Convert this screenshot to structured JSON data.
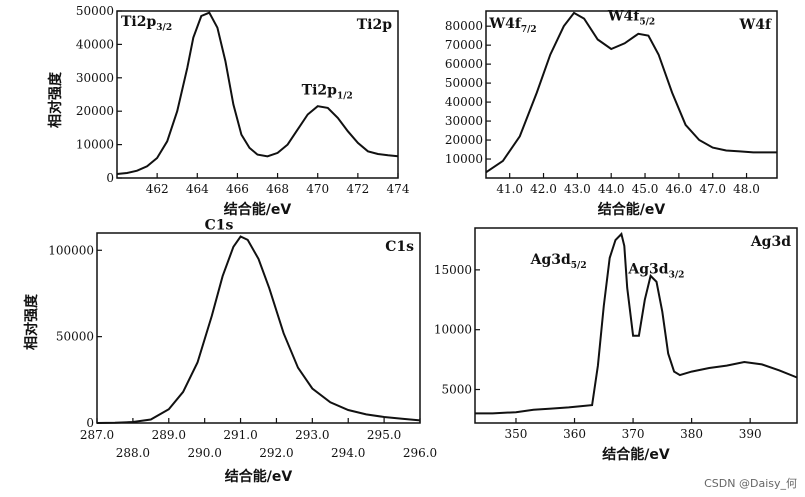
{
  "ylabel_text": "相对强度",
  "watermark": "CSDN @Daisy_何",
  "chart_data": [
    {
      "type": "line",
      "title": "Ti2p",
      "xlabel": "结合能/eV",
      "ylabel": "相对强度",
      "xlim": [
        460.0,
        474.0
      ],
      "ylim": [
        0,
        50000
      ],
      "xticks": [
        462,
        464,
        466,
        468,
        470,
        472,
        474
      ],
      "xtick_labels": [
        "462",
        "464",
        "466",
        "468",
        "470",
        "472",
        "474"
      ],
      "yticks": [
        0,
        10000,
        20000,
        30000,
        40000,
        50000
      ],
      "ytick_labels": [
        "0",
        "10000",
        "20000",
        "30000",
        "40000",
        "50000"
      ],
      "annotations": [
        {
          "main": "Ti2p",
          "sub": "3/2",
          "x": 460.2,
          "y": 45500
        },
        {
          "main": "Ti2p",
          "sub": "1/2",
          "x": 469.2,
          "y": 25000
        }
      ],
      "series": [
        {
          "x": [
            460.0,
            460.5,
            461.0,
            461.5,
            462.0,
            462.5,
            463.0,
            463.5,
            463.8,
            464.2,
            464.6,
            465.0,
            465.4,
            465.8,
            466.2,
            466.6,
            467.0,
            467.5,
            468.0,
            468.5,
            469.0,
            469.5,
            470.0,
            470.5,
            471.0,
            471.5,
            472.0,
            472.5,
            473.0,
            473.5,
            474.0
          ],
          "y": [
            1200,
            1500,
            2200,
            3500,
            6000,
            11000,
            20000,
            33000,
            42000,
            48500,
            49500,
            45000,
            35000,
            22000,
            13000,
            9000,
            7000,
            6500,
            7500,
            10000,
            14500,
            19000,
            21500,
            21000,
            18000,
            14000,
            10500,
            8000,
            7200,
            6800,
            6500
          ]
        }
      ]
    },
    {
      "type": "line",
      "title": "W4f",
      "xlabel": "结合能/eV",
      "ylabel": "",
      "xlim": [
        40.3,
        48.9
      ],
      "ylim": [
        0,
        88000
      ],
      "xticks": [
        41.0,
        42.0,
        43.0,
        44.0,
        45.0,
        46.0,
        47.0,
        48.0
      ],
      "xtick_labels": [
        "41.0",
        "42.0",
        "43.0",
        "44.0",
        "45.0",
        "46.0",
        "47.0",
        "48.0"
      ],
      "yticks": [
        10000,
        20000,
        30000,
        40000,
        50000,
        60000,
        70000,
        80000
      ],
      "ytick_labels": [
        "10000",
        "20000",
        "30000",
        "40000",
        "50000",
        "60000",
        "70000",
        "80000"
      ],
      "annotations": [
        {
          "main": "W4f",
          "sub": "7/2",
          "x": 40.4,
          "y": 79000
        },
        {
          "main": "W4f",
          "sub": "5/2",
          "x": 43.9,
          "y": 83000
        }
      ],
      "series": [
        {
          "x": [
            40.3,
            40.8,
            41.3,
            41.8,
            42.2,
            42.6,
            42.9,
            43.2,
            43.6,
            44.0,
            44.4,
            44.8,
            45.1,
            45.4,
            45.8,
            46.2,
            46.6,
            47.0,
            47.4,
            47.8,
            48.2,
            48.9
          ],
          "y": [
            3000,
            9000,
            22000,
            45000,
            65000,
            80000,
            87000,
            84000,
            73000,
            68000,
            71000,
            76000,
            75000,
            65000,
            45000,
            28000,
            20000,
            16000,
            14500,
            14000,
            13500,
            13500
          ]
        }
      ]
    },
    {
      "type": "line",
      "title": "C1s",
      "xlabel": "结合能/eV",
      "ylabel": "相对强度",
      "xlim": [
        287.0,
        296.0
      ],
      "ylim": [
        0,
        110000
      ],
      "xticks": [
        287.0,
        288.0,
        289.0,
        290.0,
        291.0,
        292.0,
        293.0,
        294.0,
        295.0,
        296.0
      ],
      "xtick_labels": [
        "287.0",
        "288.0",
        "289.0",
        "290.0",
        "291.0",
        "292.0",
        "293.0",
        "294.0",
        "295.0",
        "296.0"
      ],
      "yticks": [
        0,
        50000,
        100000
      ],
      "ytick_labels": [
        "0",
        "50000",
        "100000"
      ],
      "annotations": [
        {
          "main": "C1s",
          "sub": "",
          "x": 290.0,
          "y": 112000
        }
      ],
      "series": [
        {
          "x": [
            287.0,
            287.5,
            288.0,
            288.5,
            289.0,
            289.4,
            289.8,
            290.2,
            290.5,
            290.8,
            291.0,
            291.2,
            291.5,
            291.8,
            292.2,
            292.6,
            293.0,
            293.5,
            294.0,
            294.5,
            295.0,
            295.5,
            296.0
          ],
          "y": [
            0,
            200,
            600,
            2000,
            8000,
            18000,
            35000,
            62000,
            85000,
            102000,
            108000,
            106000,
            95000,
            78000,
            52000,
            32000,
            20000,
            12000,
            7500,
            5000,
            3500,
            2500,
            1500
          ]
        }
      ]
    },
    {
      "type": "line",
      "title": "Ag3d",
      "xlabel": "结合能/eV",
      "ylabel": "",
      "xlim": [
        343,
        398
      ],
      "ylim": [
        2200,
        18500
      ],
      "xticks": [
        350,
        360,
        370,
        380,
        390
      ],
      "xtick_labels": [
        "350",
        "360",
        "370",
        "380",
        "390"
      ],
      "yticks": [
        5000,
        10000,
        15000
      ],
      "ytick_labels": [
        "5000",
        "10000",
        "15000"
      ],
      "annotations": [
        {
          "main": "Ag3d",
          "sub": "5/2",
          "x": 352.5,
          "y": 15500
        },
        {
          "main": "Ag3d",
          "sub": "3/2",
          "x": 369.2,
          "y": 14700
        }
      ],
      "series": [
        {
          "x": [
            343,
            346,
            350,
            353,
            356,
            359,
            361,
            363,
            364,
            365,
            366,
            367,
            368,
            368.5,
            369,
            370,
            371,
            372,
            373,
            374,
            375,
            376,
            377,
            378,
            380,
            383,
            386,
            389,
            392,
            395,
            398
          ],
          "y": [
            3000,
            3000,
            3100,
            3300,
            3400,
            3500,
            3600,
            3700,
            7000,
            12000,
            16000,
            17500,
            18000,
            17000,
            13500,
            9500,
            9500,
            12500,
            14500,
            14000,
            11500,
            8000,
            6500,
            6200,
            6500,
            6800,
            7000,
            7300,
            7100,
            6600,
            6000
          ]
        }
      ]
    }
  ]
}
